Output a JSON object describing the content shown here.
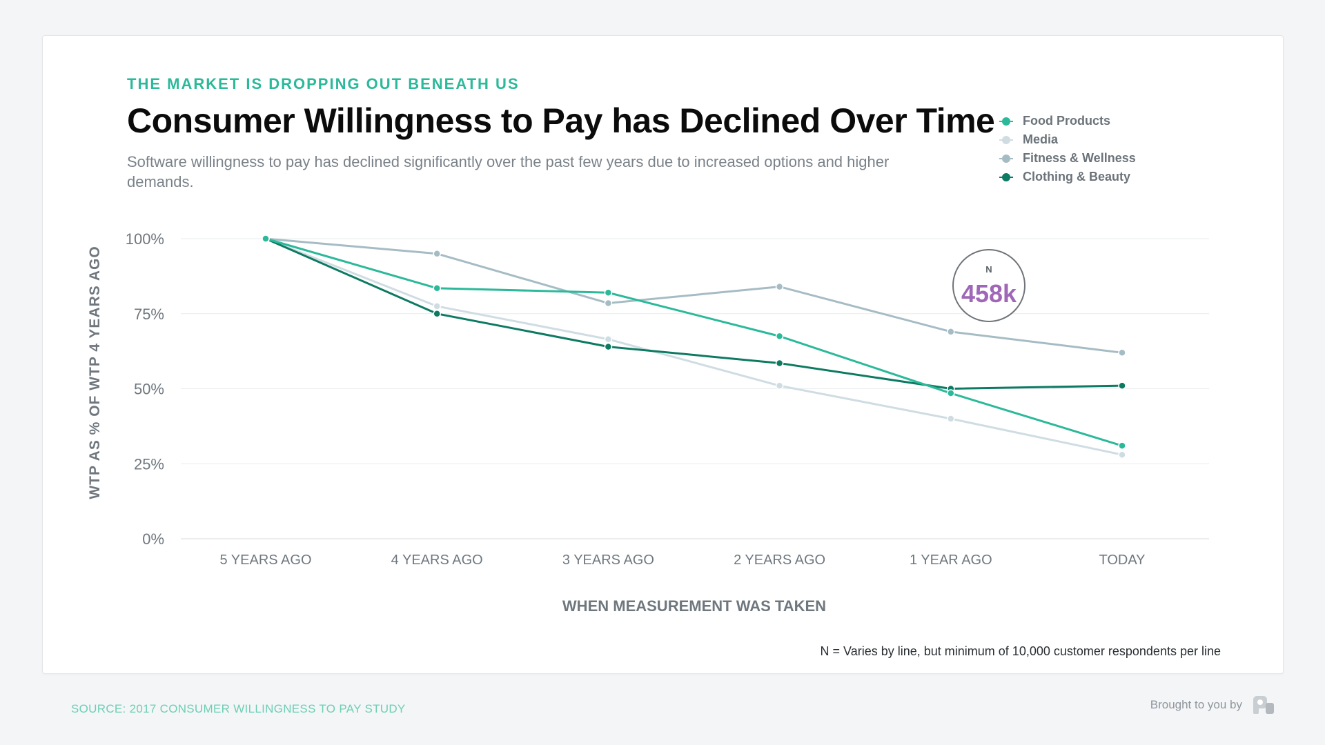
{
  "header": {
    "eyebrow": "THE MARKET IS DROPPING OUT BENEATH US",
    "title": "Consumer Willingness to Pay has Declined Over Time",
    "subtitle": "Software willingness to pay has declined significantly over the past few years due to increased options and higher demands."
  },
  "badge": {
    "label": "N",
    "value": "458k",
    "color": "#a066b8"
  },
  "footnote": "N = Varies by line, but minimum of 10,000 customer respondents per line",
  "footer": {
    "source": "SOURCE: 2017 CONSUMER WILLINGNESS TO PAY STUDY",
    "brand_text": "Brought to you by",
    "brand_icon": "profitwell-logo-icon"
  },
  "chart_data": {
    "type": "line",
    "title": "Consumer Willingness to Pay has Declined Over Time",
    "xlabel": "WHEN MEASUREMENT WAS TAKEN",
    "ylabel": "WTP AS % OF WTP 4 YEARS AGO",
    "categories": [
      "5 YEARS AGO",
      "4 YEARS AGO",
      "3 YEARS AGO",
      "2 YEARS AGO",
      "1 YEAR AGO",
      "TODAY"
    ],
    "ylim": [
      0,
      100
    ],
    "yticks": [
      0,
      25,
      50,
      75,
      100
    ],
    "ytick_labels": [
      "0%",
      "25%",
      "50%",
      "75%",
      "100%"
    ],
    "grid": true,
    "legend_position": "top-right",
    "series": [
      {
        "name": "Food Products",
        "color": "#2bb99a",
        "values": [
          100,
          83.5,
          82,
          67.5,
          48.5,
          31
        ]
      },
      {
        "name": "Media",
        "color": "#cfdde3",
        "values": [
          100,
          77.5,
          66.5,
          51,
          40,
          28
        ]
      },
      {
        "name": "Fitness & Wellness",
        "color": "#a6bcc4",
        "values": [
          100,
          95,
          78.5,
          84,
          69,
          62
        ]
      },
      {
        "name": "Clothing & Beauty",
        "color": "#0d7a62",
        "values": [
          100,
          75,
          64,
          58.5,
          50,
          51
        ]
      }
    ]
  }
}
